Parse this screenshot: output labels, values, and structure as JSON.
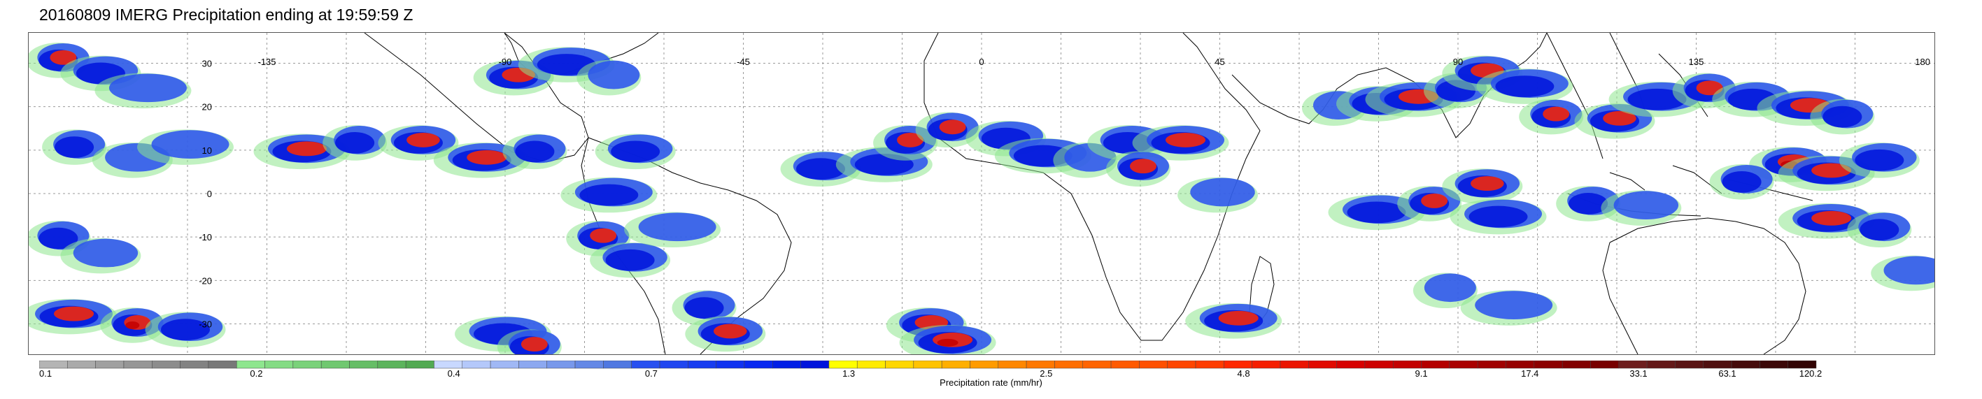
{
  "title": "20160809 IMERG Precipitation ending at 19:59:59 Z",
  "map": {
    "lon_range": [
      -180,
      180
    ],
    "lat_range": [
      -37,
      37
    ],
    "grid": "dashed",
    "lat_labels": [
      "30",
      "20",
      "10",
      "0",
      "-10",
      "-20",
      "-30"
    ],
    "lat_values": [
      30,
      20,
      10,
      0,
      -10,
      -20,
      -30
    ],
    "lon_labels": [
      "-135",
      "-90",
      "-45",
      "0",
      "45",
      "90",
      "135",
      "180"
    ],
    "lon_values": [
      -135,
      -90,
      -45,
      0,
      45,
      90,
      135,
      180
    ]
  },
  "colorbar": {
    "label": "Precipitation rate (mm/hr)",
    "tick_labels": [
      "0.1",
      "0.2",
      "0.4",
      "0.7",
      "1.3",
      "2.5",
      "4.8",
      "9.1",
      "17.4",
      "33.1",
      "63.1",
      "120.2"
    ],
    "color_groups": [
      [
        "#b4b4b4",
        "#aaaaaa",
        "#a0a0a0",
        "#969696",
        "#8c8c8c",
        "#828282",
        "#787878"
      ],
      [
        "#8ee68e",
        "#84dc84",
        "#7ad27a",
        "#70c870",
        "#66be66",
        "#5cb45c",
        "#52aa52"
      ],
      [
        "#c8d8ff",
        "#b4c8fa",
        "#a0b8f5",
        "#8ca8f0",
        "#7898eb",
        "#6488e6",
        "#5078e1"
      ],
      [
        "#2850f0",
        "#2046f0",
        "#183cf0",
        "#1032f0",
        "#0828f0",
        "#001ee6",
        "#0014dc"
      ],
      [
        "#ffff00",
        "#ffeb00",
        "#ffd700",
        "#ffc300",
        "#ffaf00",
        "#ff9b00",
        "#ff8700"
      ],
      [
        "#ff7800",
        "#ff6e00",
        "#ff6400",
        "#ff5a00",
        "#ff5000",
        "#ff4600",
        "#ff3c00"
      ],
      [
        "#ff2800",
        "#f51e00",
        "#eb1400",
        "#e10a00",
        "#d70000",
        "#cd0000",
        "#c30000"
      ],
      [
        "#b40000",
        "#aa0000",
        "#a00000",
        "#960000",
        "#8c0000",
        "#820000",
        "#780000"
      ],
      [
        "#6e1e1e",
        "#641818",
        "#5a1414",
        "#501010",
        "#460c0c",
        "#3c0808",
        "#320404"
      ]
    ]
  },
  "precip_cells": [
    {
      "lon": -174,
      "lat": 31,
      "rank": 3
    },
    {
      "lon": -166,
      "lat": 28,
      "rank": 2
    },
    {
      "lon": -158,
      "lat": 24,
      "rank": 1
    },
    {
      "lon": -171,
      "lat": 11,
      "rank": 2
    },
    {
      "lon": -160,
      "lat": 8,
      "rank": 1
    },
    {
      "lon": -150,
      "lat": 11,
      "rank": 1
    },
    {
      "lon": -174,
      "lat": -10,
      "rank": 2
    },
    {
      "lon": -166,
      "lat": -14,
      "rank": 1
    },
    {
      "lon": -172,
      "lat": -28,
      "rank": 3
    },
    {
      "lon": -160,
      "lat": -30,
      "rank": 4
    },
    {
      "lon": -150,
      "lat": -31,
      "rank": 2
    },
    {
      "lon": -128,
      "lat": 10,
      "rank": 3
    },
    {
      "lon": -118,
      "lat": 12,
      "rank": 2
    },
    {
      "lon": -106,
      "lat": 12,
      "rank": 3
    },
    {
      "lon": -94,
      "lat": 8,
      "rank": 3
    },
    {
      "lon": -84,
      "lat": 10,
      "rank": 2
    },
    {
      "lon": -88,
      "lat": 27,
      "rank": 3
    },
    {
      "lon": -78,
      "lat": 30,
      "rank": 2
    },
    {
      "lon": -70,
      "lat": 27,
      "rank": 1
    },
    {
      "lon": -65,
      "lat": 10,
      "rank": 2
    },
    {
      "lon": -70,
      "lat": 0,
      "rank": 2
    },
    {
      "lon": -72,
      "lat": -10,
      "rank": 3
    },
    {
      "lon": -66,
      "lat": -15,
      "rank": 2
    },
    {
      "lon": -58,
      "lat": -8,
      "rank": 1
    },
    {
      "lon": -52,
      "lat": -26,
      "rank": 2
    },
    {
      "lon": -48,
      "lat": -32,
      "rank": 3
    },
    {
      "lon": -90,
      "lat": -32,
      "rank": 2
    },
    {
      "lon": -85,
      "lat": -35,
      "rank": 3
    },
    {
      "lon": -30,
      "lat": 6,
      "rank": 2
    },
    {
      "lon": -18,
      "lat": 7,
      "rank": 2
    },
    {
      "lon": -14,
      "lat": 12,
      "rank": 3
    },
    {
      "lon": -10,
      "lat": -30,
      "rank": 3
    },
    {
      "lon": -6,
      "lat": -34,
      "rank": 4
    },
    {
      "lon": -6,
      "lat": 15,
      "rank": 3
    },
    {
      "lon": 5,
      "lat": 13,
      "rank": 2
    },
    {
      "lon": 12,
      "lat": 9,
      "rank": 2
    },
    {
      "lon": 20,
      "lat": 8,
      "rank": 1
    },
    {
      "lon": 28,
      "lat": 12,
      "rank": 2
    },
    {
      "lon": 38,
      "lat": 12,
      "rank": 3
    },
    {
      "lon": 30,
      "lat": 6,
      "rank": 3
    },
    {
      "lon": 45,
      "lat": 0,
      "rank": 1
    },
    {
      "lon": 48,
      "lat": -29,
      "rank": 3
    },
    {
      "lon": 67,
      "lat": 20,
      "rank": 1
    },
    {
      "lon": 75,
      "lat": 21,
      "rank": 2
    },
    {
      "lon": 82,
      "lat": 22,
      "rank": 3
    },
    {
      "lon": 90,
      "lat": 24,
      "rank": 2
    },
    {
      "lon": 95,
      "lat": 28,
      "rank": 3
    },
    {
      "lon": 103,
      "lat": 25,
      "rank": 2
    },
    {
      "lon": 108,
      "lat": 18,
      "rank": 3
    },
    {
      "lon": 120,
      "lat": 17,
      "rank": 3
    },
    {
      "lon": 128,
      "lat": 22,
      "rank": 2
    },
    {
      "lon": 137,
      "lat": 24,
      "rank": 3
    },
    {
      "lon": 146,
      "lat": 22,
      "rank": 2
    },
    {
      "lon": 156,
      "lat": 20,
      "rank": 3
    },
    {
      "lon": 163,
      "lat": 18,
      "rank": 2
    },
    {
      "lon": 153,
      "lat": 7,
      "rank": 4
    },
    {
      "lon": 160,
      "lat": 5,
      "rank": 3
    },
    {
      "lon": 144,
      "lat": 3,
      "rank": 2
    },
    {
      "lon": 170,
      "lat": 8,
      "rank": 2
    },
    {
      "lon": 75,
      "lat": -4,
      "rank": 2
    },
    {
      "lon": 85,
      "lat": -2,
      "rank": 3
    },
    {
      "lon": 95,
      "lat": 2,
      "rank": 3
    },
    {
      "lon": 98,
      "lat": -5,
      "rank": 2
    },
    {
      "lon": 115,
      "lat": -2,
      "rank": 2
    },
    {
      "lon": 125,
      "lat": -3,
      "rank": 1
    },
    {
      "lon": 160,
      "lat": -6,
      "rank": 3
    },
    {
      "lon": 170,
      "lat": -8,
      "rank": 2
    },
    {
      "lon": 176,
      "lat": -18,
      "rank": 1
    },
    {
      "lon": 100,
      "lat": -26,
      "rank": 1
    },
    {
      "lon": 88,
      "lat": -22,
      "rank": 1
    }
  ]
}
